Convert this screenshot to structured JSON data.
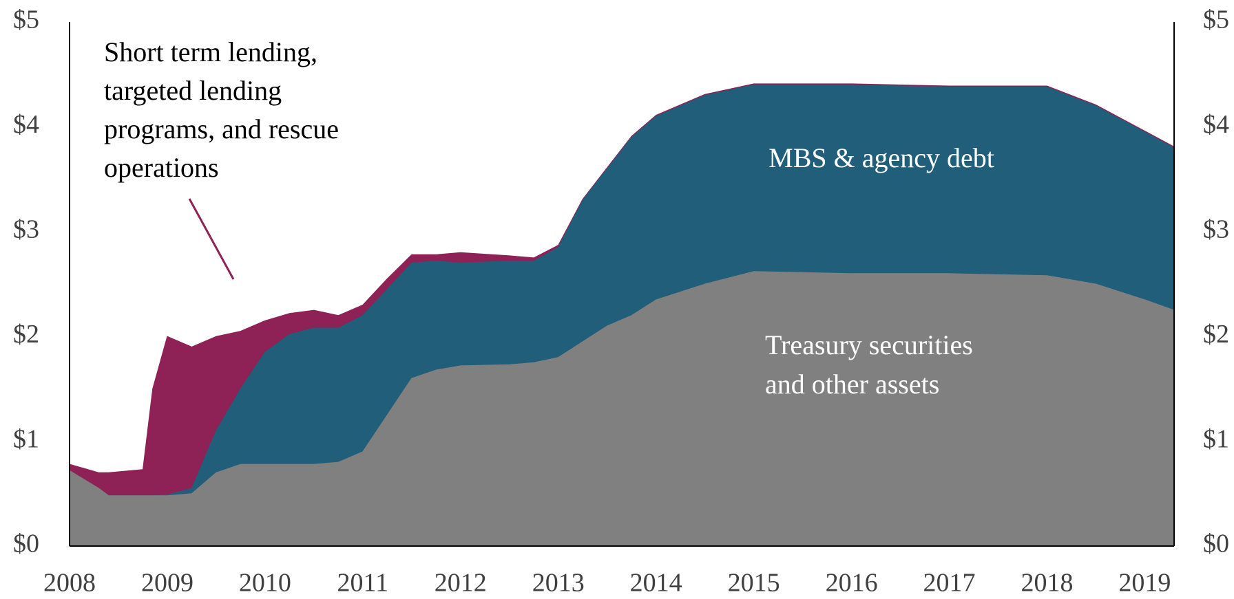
{
  "chart_data": {
    "type": "stacked_area",
    "x": [
      2008,
      2008.3,
      2008.4,
      2008.75,
      2008.85,
      2009,
      2009.25,
      2009.5,
      2009.75,
      2010,
      2010.25,
      2010.5,
      2010.75,
      2011,
      2011.25,
      2011.5,
      2011.75,
      2012,
      2012.5,
      2012.75,
      2013,
      2013.25,
      2013.5,
      2013.75,
      2014,
      2014.5,
      2015,
      2016,
      2017,
      2018,
      2018.5,
      2019,
      2019.3
    ],
    "series": [
      {
        "name": "Treasury securities and other assets",
        "color": "#808080",
        "values": [
          0.72,
          0.55,
          0.48,
          0.48,
          0.48,
          0.48,
          0.5,
          0.7,
          0.78,
          0.78,
          0.78,
          0.78,
          0.8,
          0.9,
          1.25,
          1.6,
          1.68,
          1.72,
          1.73,
          1.75,
          1.8,
          1.95,
          2.1,
          2.2,
          2.35,
          2.5,
          2.62,
          2.6,
          2.6,
          2.58,
          2.5,
          2.35,
          2.25
        ]
      },
      {
        "name": "MBS & agency debt",
        "color": "#215e79",
        "values": [
          0,
          0,
          0,
          0,
          0,
          0.01,
          0.05,
          0.4,
          0.72,
          1.07,
          1.24,
          1.3,
          1.28,
          1.3,
          1.2,
          1.1,
          1.04,
          0.98,
          0.99,
          0.97,
          1.05,
          1.35,
          1.5,
          1.7,
          1.75,
          1.8,
          1.78,
          1.8,
          1.78,
          1.8,
          1.7,
          1.6,
          1.55
        ]
      },
      {
        "name": "Short term lending, targeted lending programs, and rescue operations",
        "color": "#8e2156",
        "values": [
          0.06,
          0.15,
          0.22,
          0.25,
          1.02,
          1.51,
          1.35,
          0.9,
          0.55,
          0.3,
          0.2,
          0.17,
          0.12,
          0.1,
          0.1,
          0.08,
          0.06,
          0.1,
          0.05,
          0.03,
          0.02,
          0.01,
          0.01,
          0.01,
          0.01,
          0.01,
          0.01,
          0.01,
          0.01,
          0.01,
          0.01,
          0.01,
          0.01
        ]
      }
    ],
    "annotations": {
      "lending": [
        "Short term lending,",
        "targeted lending",
        "programs, and rescue",
        "operations"
      ],
      "mbs": [
        "MBS & agency debt"
      ],
      "treasury": [
        "Treasury securities",
        "and other assets"
      ]
    },
    "xlim": [
      2008,
      2019.3
    ],
    "xticks": [
      2008,
      2009,
      2010,
      2011,
      2012,
      2013,
      2014,
      2015,
      2016,
      2017,
      2018,
      2019
    ],
    "ylim": [
      0,
      5
    ],
    "yticks": [
      {
        "value": 0,
        "label": "$0"
      },
      {
        "value": 1,
        "label": "$1"
      },
      {
        "value": 2,
        "label": "$2"
      },
      {
        "value": 3,
        "label": "$3"
      },
      {
        "value": 4,
        "label": "$4"
      },
      {
        "value": 5,
        "label": "$5"
      }
    ],
    "y2lim": [
      0,
      5
    ],
    "y2ticks": [
      {
        "value": 0,
        "label": "$0"
      },
      {
        "value": 1,
        "label": "$1"
      },
      {
        "value": 2,
        "label": "$2"
      },
      {
        "value": 3,
        "label": "$3"
      },
      {
        "value": 4,
        "label": "$4"
      },
      {
        "value": 5,
        "label": "$5"
      }
    ]
  }
}
